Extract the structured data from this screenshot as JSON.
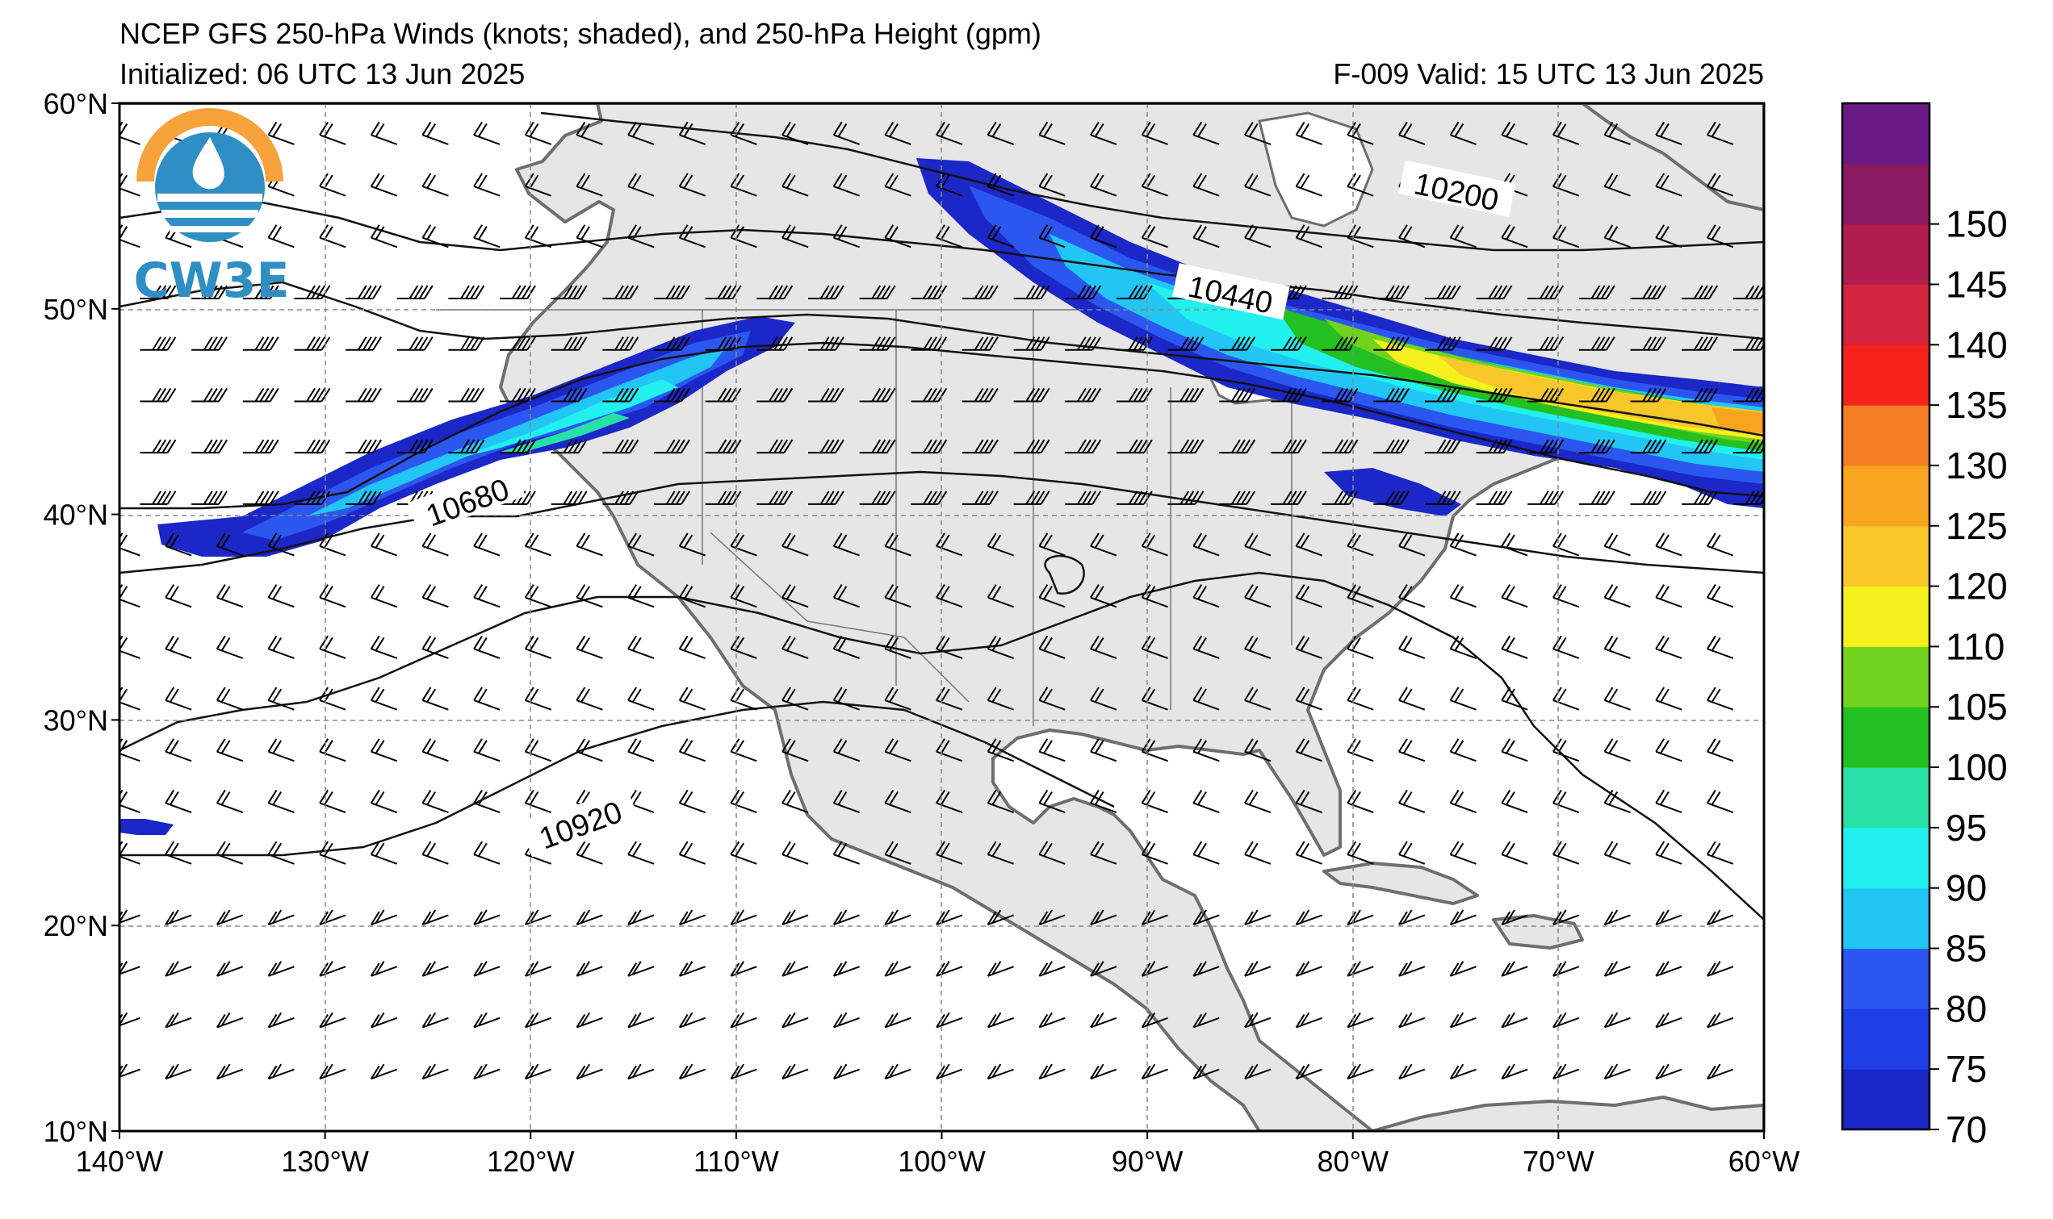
{
  "header": {
    "title": "NCEP GFS 250-hPa Winds (knots; shaded), and 250-hPa Height (gpm)",
    "initialized": "Initialized: 06 UTC 13 Jun 2025",
    "forecast": "F-009  Valid: 15 UTC 13 Jun 2025"
  },
  "logo": {
    "text": "CW3E",
    "colors": {
      "ring": "#f7a23a",
      "blue": "#2f8fc4",
      "dark": "#1d5f8c"
    }
  },
  "map": {
    "lon_range": [
      -140,
      -60
    ],
    "lat_range": [
      10,
      60
    ],
    "lat_ticks": [
      {
        "value": 60,
        "label": "60°N"
      },
      {
        "value": 50,
        "label": "50°N"
      },
      {
        "value": 40,
        "label": "40°N"
      },
      {
        "value": 30,
        "label": "30°N"
      },
      {
        "value": 20,
        "label": "20°N"
      },
      {
        "value": 10,
        "label": "10°N"
      }
    ],
    "lon_ticks": [
      {
        "value": -140,
        "label": "140°W"
      },
      {
        "value": -130,
        "label": "130°W"
      },
      {
        "value": -120,
        "label": "120°W"
      },
      {
        "value": -110,
        "label": "110°W"
      },
      {
        "value": -100,
        "label": "100°W"
      },
      {
        "value": -90,
        "label": "90°W"
      },
      {
        "value": -80,
        "label": "80°W"
      },
      {
        "value": -70,
        "label": "70°W"
      },
      {
        "value": -60,
        "label": "60°W"
      }
    ],
    "land_color": "#e6e6e6",
    "coast_color": "#6e6e6e",
    "height_contour_labels": [
      {
        "text": "10200",
        "lon": -75,
        "lat": 55.5,
        "angle": 12
      },
      {
        "text": "10440",
        "lon": -86,
        "lat": 50.5,
        "angle": 12
      },
      {
        "text": "10680",
        "lon": -123,
        "lat": 40.4,
        "angle": -20
      },
      {
        "text": "10920",
        "lon": -117.5,
        "lat": 24.7,
        "angle": -20
      }
    ]
  },
  "colorbar": {
    "levels": [
      {
        "value": 70,
        "color": "#1c27c8"
      },
      {
        "value": 75,
        "color": "#1e3ee6"
      },
      {
        "value": 80,
        "color": "#2b57f0"
      },
      {
        "value": 85,
        "color": "#22c6f5"
      },
      {
        "value": 90,
        "color": "#22f0ee"
      },
      {
        "value": 95,
        "color": "#27e0a6"
      },
      {
        "value": 100,
        "color": "#22c020"
      },
      {
        "value": 105,
        "color": "#72d31e"
      },
      {
        "value": 110,
        "color": "#f6f01c"
      },
      {
        "value": 120,
        "color": "#f8c82a"
      },
      {
        "value": 125,
        "color": "#f7a51f"
      },
      {
        "value": 130,
        "color": "#f57d22"
      },
      {
        "value": 135,
        "color": "#f5221c"
      },
      {
        "value": 140,
        "color": "#d4243e"
      },
      {
        "value": 145,
        "color": "#b01d4e"
      },
      {
        "value": 150,
        "color": "#8c1a60"
      },
      {
        "value": 155,
        "color": "#6a1a84"
      }
    ],
    "tick_labels": [
      "70",
      "75",
      "80",
      "85",
      "90",
      "95",
      "100",
      "105",
      "110",
      "120",
      "125",
      "130",
      "135",
      "140",
      "145",
      "150"
    ]
  }
}
